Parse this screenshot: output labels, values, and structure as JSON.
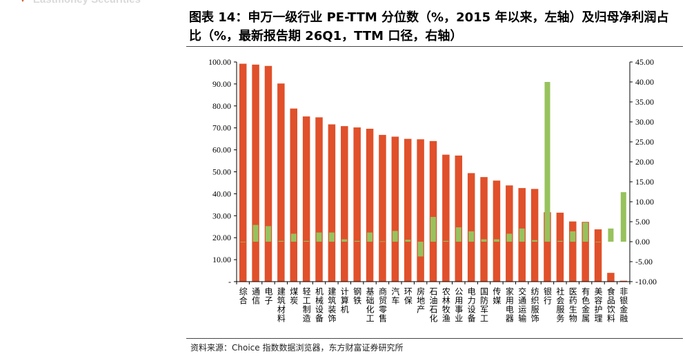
{
  "brand": {
    "text": "Eastmoney Securities"
  },
  "header": {
    "title": "图表 14：申万一级行业 PE-TTM 分位数（%，2015 年以来，左轴）及归母净利润占比（%，最新报告期 26Q1，TTM 口径，右轴）"
  },
  "footer": {
    "source": "资料来源：Choice 指数数据浏览器，东方财富证券研究所"
  },
  "colors": {
    "bar": "#e0502a",
    "profit": "#97c25d",
    "axis": "#000000"
  },
  "chart_data": {
    "type": "bar",
    "title": "",
    "categories": [
      "综合",
      "通信",
      "电子",
      "建筑材料",
      "煤炭",
      "轻工制造",
      "机械设备",
      "建筑装饰",
      "计算机",
      "钢铁",
      "基础化工",
      "商贸零售",
      "汽车",
      "环保",
      "房地产",
      "石油石化",
      "农林牧渔",
      "公用事业",
      "电力设备",
      "国防军工",
      "传媒",
      "家用电器",
      "交通运输",
      "纺织服饰",
      "银行",
      "社会服务",
      "医药生物",
      "有色金属",
      "美容护理",
      "食品饮料",
      "非银金融"
    ],
    "series": [
      {
        "name": "",
        "axis": "left",
        "values": [
          99.2,
          98.8,
          98.2,
          90.2,
          78.8,
          75.2,
          74.8,
          71.6,
          70.8,
          70.2,
          69.6,
          66.8,
          66.0,
          65.0,
          64.8,
          64.0,
          57.8,
          57.4,
          49.4,
          47.6,
          46.0,
          43.8,
          42.6,
          42.2,
          31.6,
          31.4,
          27.4,
          27.2,
          23.8,
          4.0,
          0.4
        ]
      },
      {
        "name": "",
        "axis": "right",
        "values": [
          0.0,
          4.2,
          3.9,
          0.2,
          2.0,
          0.2,
          2.3,
          2.3,
          0.6,
          0.2,
          2.3,
          0.1,
          2.7,
          0.5,
          -3.7,
          6.2,
          0.2,
          3.6,
          2.6,
          0.6,
          0.6,
          2.0,
          3.3,
          0.4,
          40.0,
          0.2,
          2.6,
          4.8,
          0.0,
          3.3,
          12.4
        ]
      }
    ],
    "y_left": {
      "ylim": [
        0,
        100
      ],
      "ticks": [
        "-",
        "10.00",
        "20.00",
        "30.00",
        "40.00",
        "50.00",
        "60.00",
        "70.00",
        "80.00",
        "90.00",
        "100.00"
      ]
    },
    "y_right": {
      "ylim": [
        -10,
        45
      ],
      "ticks": [
        "-10.00",
        "-5.00",
        "0.00",
        "5.00",
        "10.00",
        "15.00",
        "20.00",
        "25.00",
        "30.00",
        "35.00",
        "40.00",
        "45.00"
      ]
    },
    "grid": false,
    "legend": "none"
  }
}
